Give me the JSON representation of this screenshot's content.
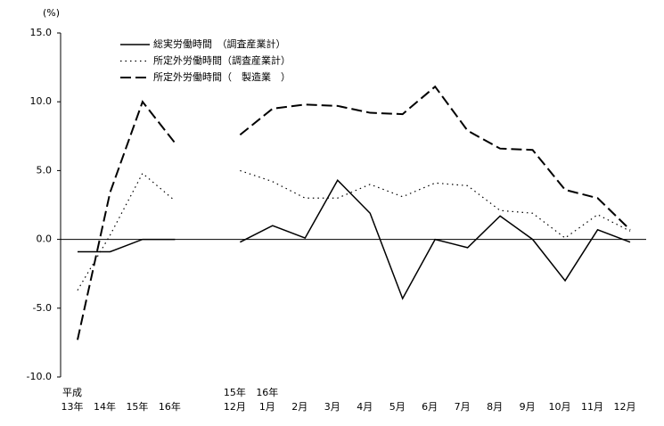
{
  "chart_data": {
    "type": "line",
    "unit_label": "(%)",
    "categories": [
      [
        "平成",
        "13年"
      ],
      [
        "14年"
      ],
      [
        "15年"
      ],
      [
        "16年"
      ],
      null,
      [
        "15年",
        "12月"
      ],
      [
        "16年",
        "1月"
      ],
      [
        "2月"
      ],
      [
        "3月"
      ],
      [
        "4月"
      ],
      [
        "5月"
      ],
      [
        "6月"
      ],
      [
        "7月"
      ],
      [
        "8月"
      ],
      [
        "9月"
      ],
      [
        "10月"
      ],
      [
        "11月"
      ],
      [
        "12月"
      ]
    ],
    "series": [
      {
        "name": "総実労働時間　（調査産業計）",
        "color": "#000000",
        "dash": "solid",
        "values": [
          -0.9,
          -0.9,
          0.0,
          0.0,
          null,
          -0.2,
          1.0,
          0.1,
          4.3,
          1.9,
          -4.3,
          0.0,
          -0.6,
          1.7,
          0.0,
          -3.0,
          0.7,
          -0.2
        ]
      },
      {
        "name": "所定外労働時間（調査産業計）",
        "color": "#000000",
        "dash": "dotted",
        "values": [
          -3.7,
          0.3,
          4.8,
          2.8,
          null,
          5.0,
          4.2,
          3.0,
          3.0,
          4.0,
          3.1,
          4.1,
          3.9,
          2.1,
          1.9,
          0.1,
          1.8,
          0.6
        ]
      },
      {
        "name": "所定外労働時間（　製造業　）",
        "color": "#000000",
        "dash": "dashed",
        "values": [
          -7.3,
          3.4,
          10.0,
          7.0,
          null,
          7.6,
          9.5,
          9.8,
          9.7,
          9.2,
          9.1,
          11.1,
          7.9,
          6.6,
          6.5,
          3.6,
          3.0,
          0.7
        ]
      }
    ],
    "ylim": [
      -10,
      15
    ],
    "yticks": [
      {
        "value": -10,
        "label": "-10.0"
      },
      {
        "value": -5,
        "label": "-5.0"
      },
      {
        "value": 0,
        "label": "0.0"
      },
      {
        "value": 5,
        "label": "5.0"
      },
      {
        "value": 10,
        "label": "10.0"
      },
      {
        "value": 15,
        "label": "15.0"
      }
    ],
    "grid": false,
    "legend": "top-left"
  }
}
